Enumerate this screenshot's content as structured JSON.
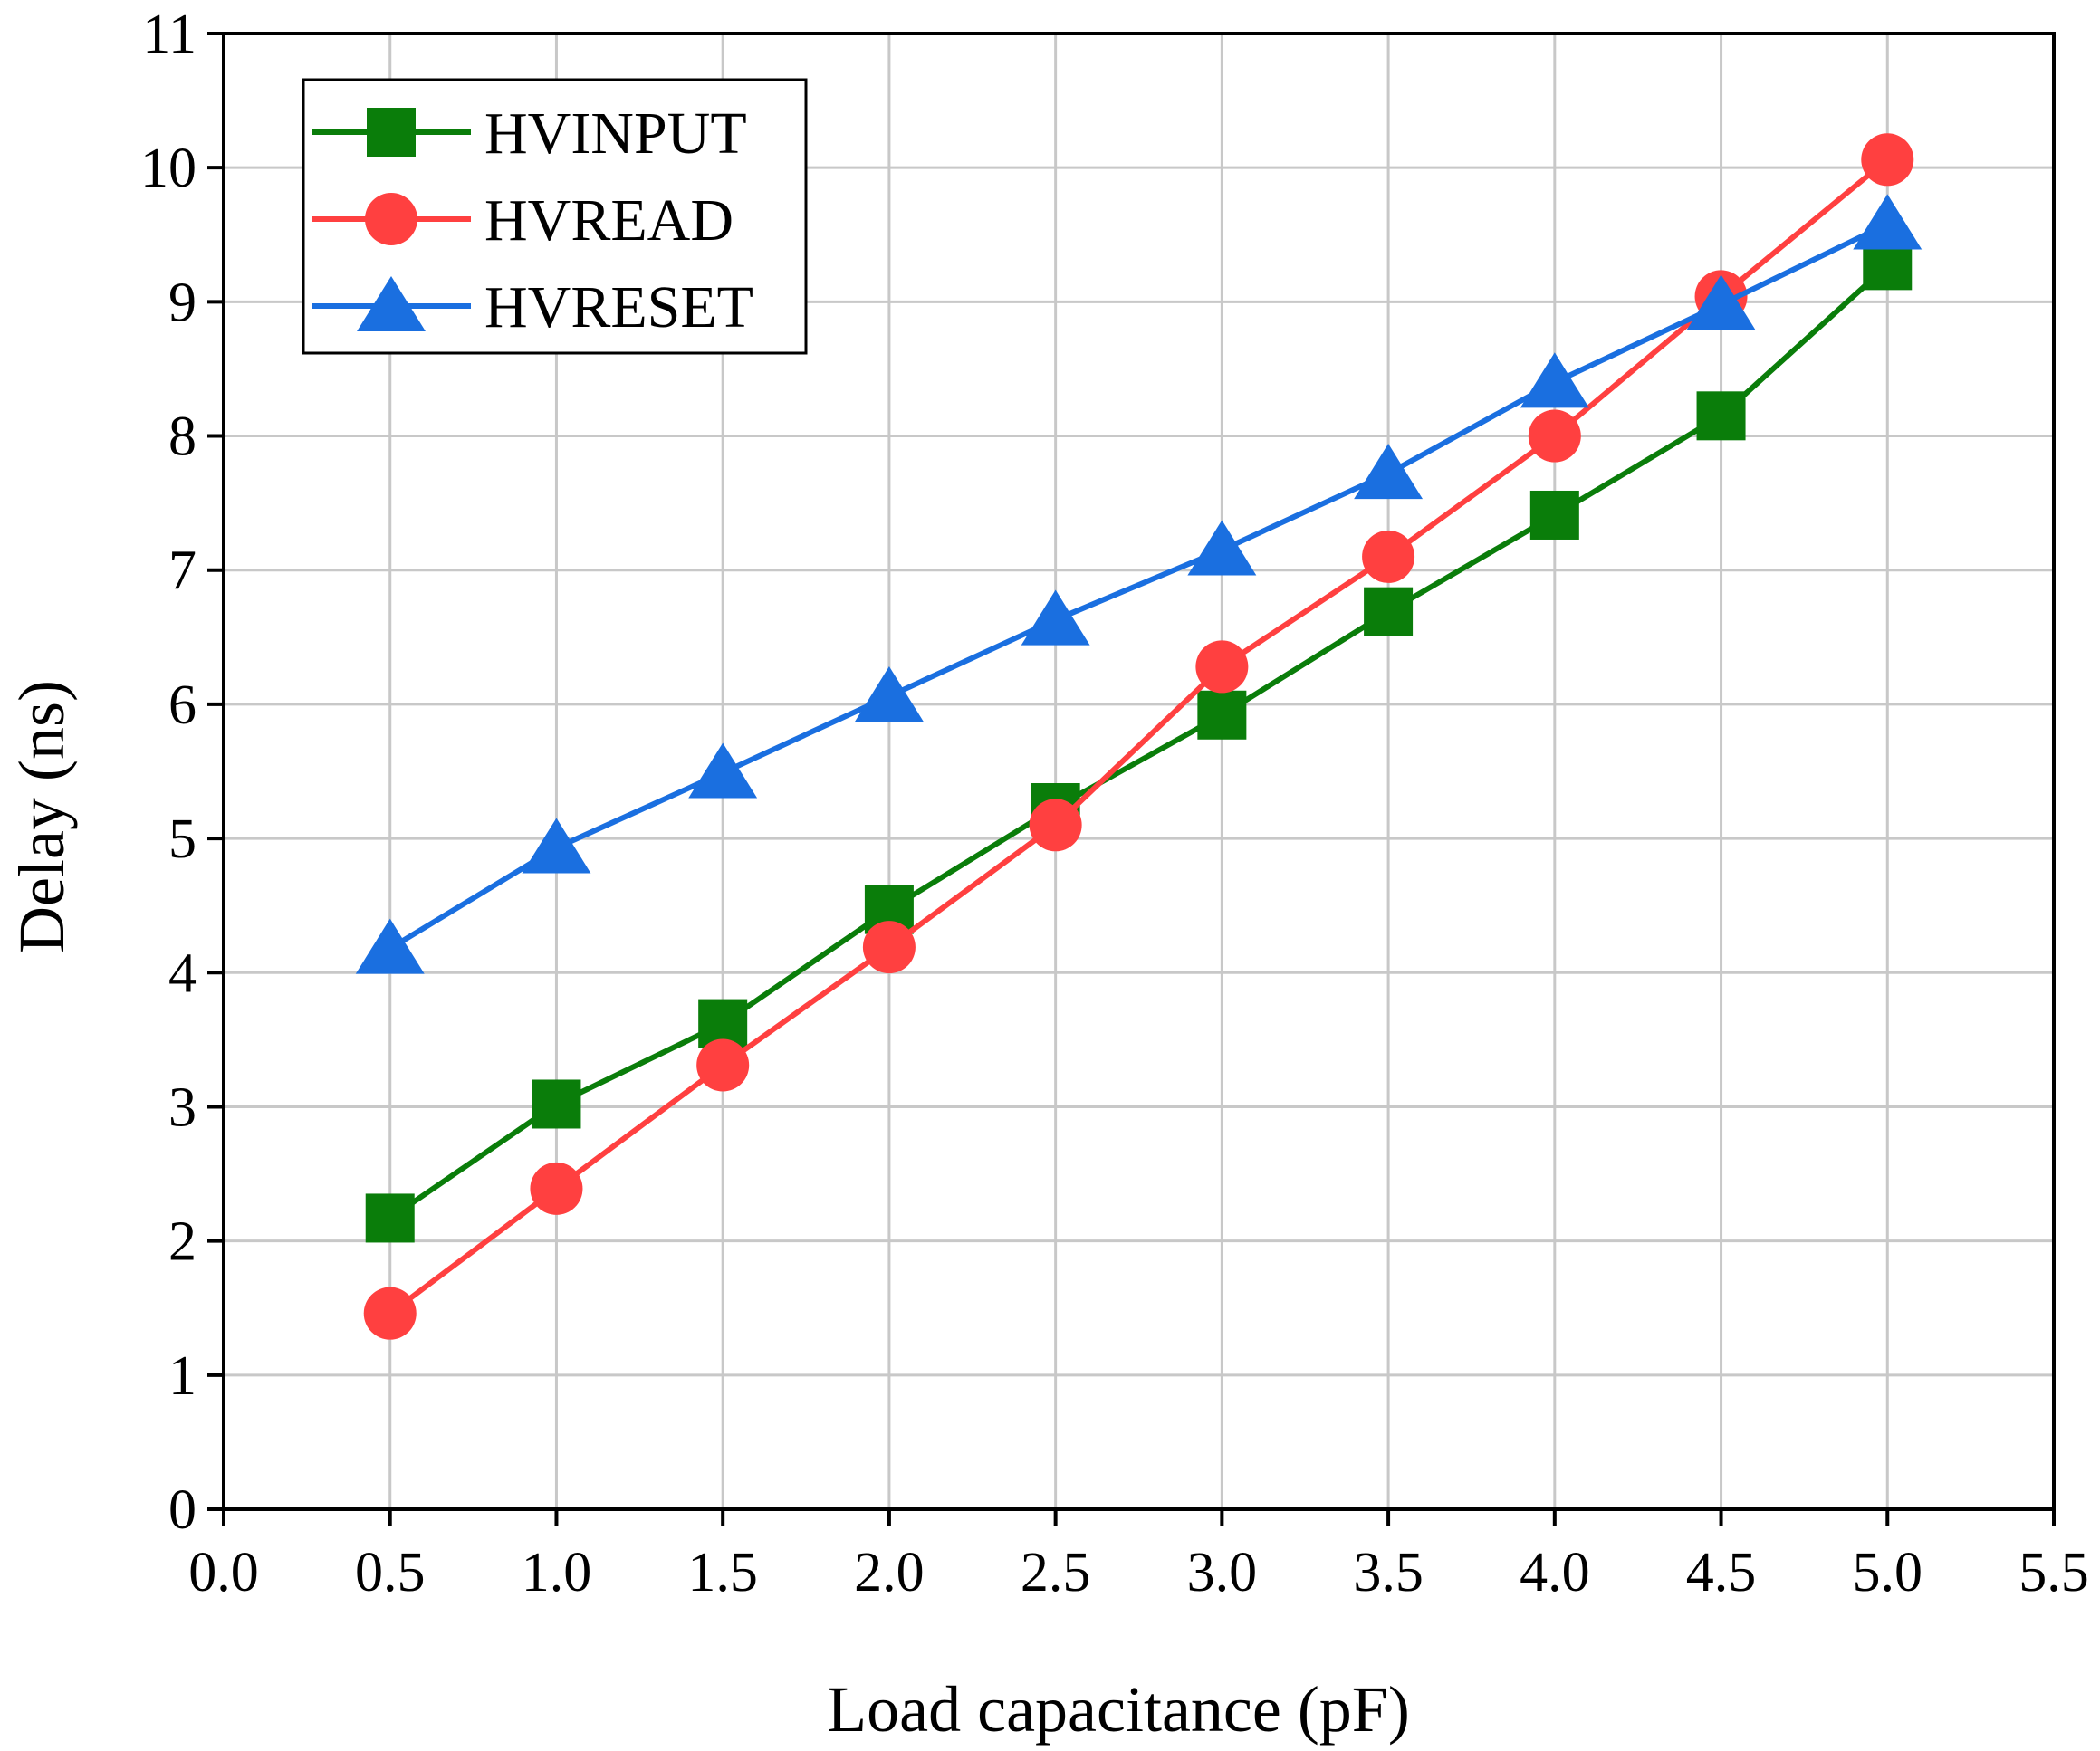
{
  "chart_data": {
    "type": "line",
    "title": "",
    "xlabel": "Load capacitance (pF)",
    "ylabel": "Delay (ns)",
    "xlim": [
      0.0,
      5.5
    ],
    "ylim": [
      0,
      11
    ],
    "xticks": [
      0.0,
      0.5,
      1.0,
      1.5,
      2.0,
      2.5,
      3.0,
      3.5,
      4.0,
      4.5,
      5.0,
      5.5
    ],
    "xtick_labels": [
      "0.0",
      "0.5",
      "1.0",
      "1.5",
      "2.0",
      "2.5",
      "3.0",
      "3.5",
      "4.0",
      "4.5",
      "5.0",
      "5.5"
    ],
    "yticks": [
      0,
      1,
      2,
      3,
      4,
      5,
      6,
      7,
      8,
      9,
      10,
      11
    ],
    "ytick_labels": [
      "0",
      "1",
      "2",
      "3",
      "4",
      "5",
      "6",
      "7",
      "8",
      "9",
      "10",
      "11"
    ],
    "grid": true,
    "legend_position": "top-left",
    "x": [
      0.5,
      1.0,
      1.5,
      2.0,
      2.5,
      3.0,
      3.5,
      4.0,
      4.5,
      5.0
    ],
    "series": [
      {
        "name": "HVINPUT",
        "color": "#0a7d0a",
        "marker": "square",
        "values": [
          2.17,
          3.02,
          3.62,
          4.47,
          5.23,
          5.92,
          6.69,
          7.41,
          8.15,
          9.27
        ]
      },
      {
        "name": "HVREAD",
        "color": "#ff4040",
        "marker": "circle",
        "values": [
          1.46,
          2.39,
          3.31,
          4.19,
          5.1,
          6.28,
          7.1,
          8.0,
          9.04,
          10.06
        ]
      },
      {
        "name": "HVRESET",
        "color": "#1a6fe0",
        "marker": "triangle",
        "values": [
          4.18,
          4.93,
          5.49,
          6.06,
          6.63,
          7.15,
          7.72,
          8.4,
          8.98,
          9.58
        ]
      }
    ]
  }
}
